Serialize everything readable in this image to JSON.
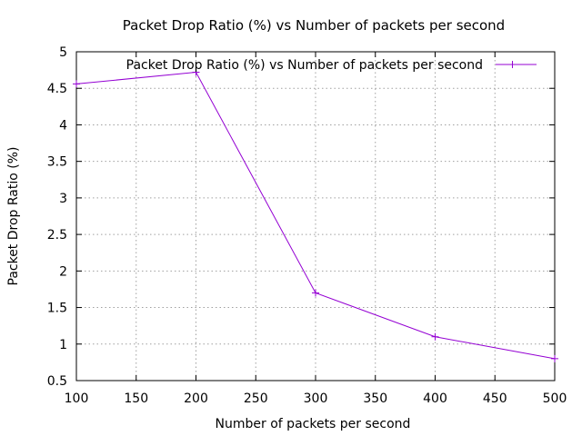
{
  "chart_data": {
    "type": "line",
    "title": "Packet Drop Ratio (%) vs Number of packets per second",
    "xlabel": "Number of packets per second",
    "ylabel": "Packet Drop Ratio (%)",
    "xlim": [
      100,
      500
    ],
    "ylim": [
      0.5,
      5
    ],
    "xticks": [
      "100",
      "150",
      "200",
      "250",
      "300",
      "350",
      "400",
      "450",
      "500"
    ],
    "yticks": [
      "0.5",
      "1",
      "1.5",
      "2",
      "2.5",
      "3",
      "3.5",
      "4",
      "4.5",
      "5"
    ],
    "grid": true,
    "legend_position": "top-right",
    "series": [
      {
        "name": "Packet Drop Ratio (%) vs Number of packets per second",
        "color": "#9400d3",
        "marker": "plus",
        "x": [
          100,
          200,
          300,
          400,
          500
        ],
        "y": [
          4.56,
          4.72,
          1.7,
          1.1,
          0.8
        ]
      }
    ]
  }
}
